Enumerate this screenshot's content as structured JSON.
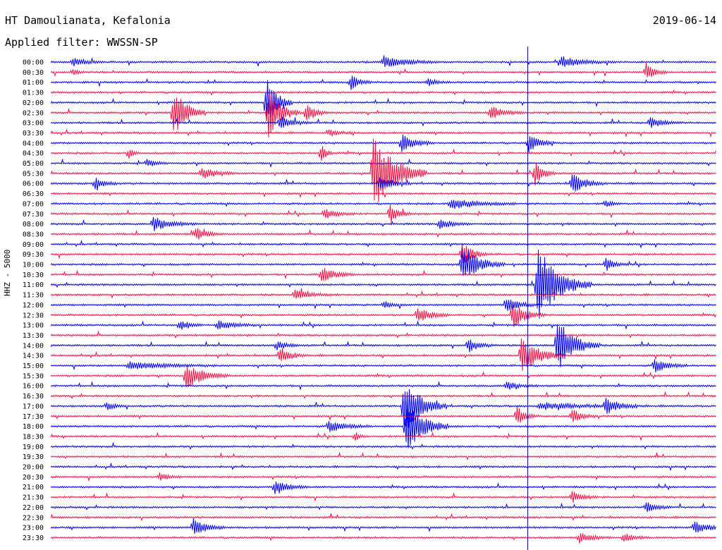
{
  "header": {
    "title": "HT Damoulianata, Kefalonia",
    "date": "2019-06-14",
    "filter_label": "Applied filter: WWSSN-SP",
    "channel_label": "HHZ - 5000"
  },
  "chart_data": {
    "type": "line",
    "title": "HT Damoulianata, Kefalonia",
    "ylabel": "HHZ - 5000",
    "trace_colors": [
      "#0000ee",
      "#ee1144"
    ],
    "row_labels": [
      "00:00",
      "00:30",
      "01:00",
      "01:30",
      "02:00",
      "02:30",
      "03:00",
      "03:30",
      "04:00",
      "04:30",
      "05:00",
      "05:30",
      "06:00",
      "06:30",
      "07:00",
      "07:30",
      "08:00",
      "08:30",
      "09:00",
      "09:30",
      "10:00",
      "10:30",
      "11:00",
      "11:30",
      "12:00",
      "12:30",
      "13:00",
      "13:30",
      "14:00",
      "14:30",
      "15:00",
      "15:30",
      "16:00",
      "16:30",
      "17:00",
      "17:30",
      "18:00",
      "18:30",
      "19:00",
      "19:30",
      "20:00",
      "20:30",
      "21:00",
      "21:30",
      "22:00",
      "22:30",
      "23:00",
      "23:30"
    ],
    "time_marker_minute": 21.5,
    "events": [
      {
        "row": 0,
        "minute": 1,
        "amp": 6,
        "dur": 1.5
      },
      {
        "row": 0,
        "minute": 15,
        "amp": 9,
        "dur": 2.5
      },
      {
        "row": 0,
        "minute": 23,
        "amp": 8,
        "dur": 2.5
      },
      {
        "row": 1,
        "minute": 1,
        "amp": 4,
        "dur": 0.8
      },
      {
        "row": 1,
        "minute": 26.8,
        "amp": 14,
        "dur": 1
      },
      {
        "row": 2,
        "minute": 13.5,
        "amp": 12,
        "dur": 1
      },
      {
        "row": 2,
        "minute": 17,
        "amp": 5,
        "dur": 1
      },
      {
        "row": 4,
        "minute": 9.7,
        "amp": 40,
        "dur": 1.2
      },
      {
        "row": 5,
        "minute": 5.5,
        "amp": 38,
        "dur": 1.5
      },
      {
        "row": 5,
        "minute": 9.8,
        "amp": 36,
        "dur": 1.5
      },
      {
        "row": 5,
        "minute": 11.5,
        "amp": 16,
        "dur": 1
      },
      {
        "row": 5,
        "minute": 19.8,
        "amp": 10,
        "dur": 1.5
      },
      {
        "row": 6,
        "minute": 10.3,
        "amp": 10,
        "dur": 1.5
      },
      {
        "row": 6,
        "minute": 27,
        "amp": 8,
        "dur": 1.5
      },
      {
        "row": 7,
        "minute": 12.5,
        "amp": 6,
        "dur": 1.2
      },
      {
        "row": 8,
        "minute": 15.8,
        "amp": 14,
        "dur": 1.5
      },
      {
        "row": 8,
        "minute": 21.5,
        "amp": 14,
        "dur": 1.2
      },
      {
        "row": 9,
        "minute": 3.5,
        "amp": 9,
        "dur": 0.5
      },
      {
        "row": 9,
        "minute": 12.2,
        "amp": 16,
        "dur": 0.5
      },
      {
        "row": 10,
        "minute": 4.3,
        "amp": 6,
        "dur": 1
      },
      {
        "row": 11,
        "minute": 6.8,
        "amp": 10,
        "dur": 1.5
      },
      {
        "row": 11,
        "minute": 14.5,
        "amp": 60,
        "dur": 2.5
      },
      {
        "row": 11,
        "minute": 21.8,
        "amp": 18,
        "dur": 1
      },
      {
        "row": 12,
        "minute": 2,
        "amp": 10,
        "dur": 1
      },
      {
        "row": 12,
        "minute": 23.5,
        "amp": 16,
        "dur": 1.5
      },
      {
        "row": 12,
        "minute": 14.8,
        "amp": 10,
        "dur": 1.5
      },
      {
        "row": 14,
        "minute": 18,
        "amp": 8,
        "dur": 3
      },
      {
        "row": 14,
        "minute": 25,
        "amp": 6,
        "dur": 0.7
      },
      {
        "row": 15,
        "minute": 12.3,
        "amp": 8,
        "dur": 1.5
      },
      {
        "row": 15,
        "minute": 15.3,
        "amp": 14,
        "dur": 1
      },
      {
        "row": 16,
        "minute": 4.6,
        "amp": 10,
        "dur": 2
      },
      {
        "row": 16,
        "minute": 17.5,
        "amp": 8,
        "dur": 1.5
      },
      {
        "row": 17,
        "minute": 6.5,
        "amp": 10,
        "dur": 1.2
      },
      {
        "row": 19,
        "minute": 18.5,
        "amp": 20,
        "dur": 1.2
      },
      {
        "row": 20,
        "minute": 18.5,
        "amp": 28,
        "dur": 2
      },
      {
        "row": 20,
        "minute": 25,
        "amp": 10,
        "dur": 1
      },
      {
        "row": 21,
        "minute": 12.2,
        "amp": 12,
        "dur": 1.5
      },
      {
        "row": 22,
        "minute": 21.9,
        "amp": 55,
        "dur": 2.5
      },
      {
        "row": 23,
        "minute": 11,
        "amp": 6,
        "dur": 2
      },
      {
        "row": 24,
        "minute": 15,
        "amp": 6,
        "dur": 1
      },
      {
        "row": 24,
        "minute": 20.5,
        "amp": 12,
        "dur": 1.5
      },
      {
        "row": 25,
        "minute": 16.5,
        "amp": 12,
        "dur": 1.5
      },
      {
        "row": 25,
        "minute": 20.8,
        "amp": 20,
        "dur": 1.5
      },
      {
        "row": 26,
        "minute": 5.8,
        "amp": 8,
        "dur": 1
      },
      {
        "row": 26,
        "minute": 7.5,
        "amp": 6,
        "dur": 2
      },
      {
        "row": 28,
        "minute": 10.2,
        "amp": 8,
        "dur": 1
      },
      {
        "row": 28,
        "minute": 18.8,
        "amp": 10,
        "dur": 1.2
      },
      {
        "row": 28,
        "minute": 22.8,
        "amp": 40,
        "dur": 2
      },
      {
        "row": 29,
        "minute": 10.3,
        "amp": 14,
        "dur": 1.2
      },
      {
        "row": 29,
        "minute": 21.2,
        "amp": 28,
        "dur": 2
      },
      {
        "row": 30,
        "minute": 3.5,
        "amp": 6,
        "dur": 4
      },
      {
        "row": 30,
        "minute": 27.2,
        "amp": 10,
        "dur": 1.5
      },
      {
        "row": 31,
        "minute": 6.1,
        "amp": 18,
        "dur": 2
      },
      {
        "row": 32,
        "minute": 20.5,
        "amp": 6,
        "dur": 1.5
      },
      {
        "row": 34,
        "minute": 2.5,
        "amp": 6,
        "dur": 1
      },
      {
        "row": 34,
        "minute": 15.9,
        "amp": 42,
        "dur": 2
      },
      {
        "row": 34,
        "minute": 22,
        "amp": 5,
        "dur": 5
      },
      {
        "row": 34,
        "minute": 25,
        "amp": 12,
        "dur": 1.5
      },
      {
        "row": 35,
        "minute": 21,
        "amp": 14,
        "dur": 1
      },
      {
        "row": 35,
        "minute": 23.5,
        "amp": 10,
        "dur": 1.2
      },
      {
        "row": 36,
        "minute": 12.5,
        "amp": 8,
        "dur": 2
      },
      {
        "row": 36,
        "minute": 16,
        "amp": 40,
        "dur": 2
      },
      {
        "row": 37,
        "minute": 13.7,
        "amp": 8,
        "dur": 0.5
      },
      {
        "row": 41,
        "minute": 4.9,
        "amp": 6,
        "dur": 1
      },
      {
        "row": 42,
        "minute": 10.1,
        "amp": 12,
        "dur": 1.5
      },
      {
        "row": 43,
        "minute": 23.5,
        "amp": 8,
        "dur": 1.2
      },
      {
        "row": 44,
        "minute": 26.8,
        "amp": 8,
        "dur": 1.2
      },
      {
        "row": 46,
        "minute": 6.4,
        "amp": 14,
        "dur": 1.5
      },
      {
        "row": 46,
        "minute": 29,
        "amp": 10,
        "dur": 1.5
      },
      {
        "row": 47,
        "minute": 23.8,
        "amp": 8,
        "dur": 1.5
      },
      {
        "row": 47,
        "minute": 25.8,
        "amp": 8,
        "dur": 1.2
      }
    ]
  }
}
